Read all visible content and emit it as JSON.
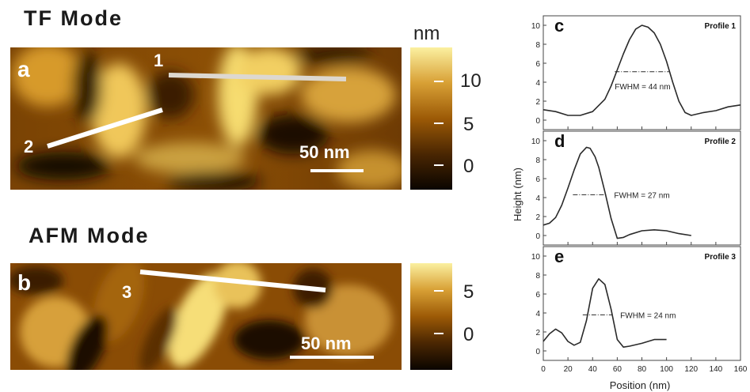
{
  "panel_top": {
    "title": "TF Mode",
    "panel_letter": "a",
    "line_labels": [
      "1",
      "2"
    ],
    "scale_bar": "50 nm"
  },
  "panel_bottom": {
    "title": "AFM Mode",
    "panel_letter": "b",
    "line_labels": [
      "3"
    ],
    "scale_bar": "50 nm"
  },
  "colorbar_top": {
    "unit": "nm",
    "ticks": [
      "10",
      "5",
      "0"
    ]
  },
  "colorbar_bottom": {
    "ticks": [
      "5",
      "0"
    ]
  },
  "colors": {
    "afm_dark": "#1a0f00",
    "afm_mid": "#9c5a06",
    "afm_light": "#f7e27a",
    "profile_line": "#2a2a2a"
  },
  "chart_data": [
    {
      "type": "line",
      "panel_letter": "c",
      "title": "Profile 1",
      "annotation": "FWHM = 44 nm",
      "xlabel": "Position (nm)",
      "ylabel": "Height (nm)",
      "xlim": [
        0,
        160
      ],
      "ylim": [
        -1,
        11
      ],
      "yticks": [
        0,
        2,
        4,
        6,
        8,
        10
      ],
      "x": [
        0,
        10,
        20,
        30,
        40,
        50,
        55,
        60,
        65,
        70,
        75,
        80,
        85,
        90,
        95,
        100,
        105,
        110,
        115,
        120,
        130,
        140,
        150,
        160
      ],
      "y": [
        1.1,
        0.9,
        0.5,
        0.5,
        0.9,
        2.2,
        3.6,
        5.3,
        7.0,
        8.5,
        9.6,
        10.0,
        9.8,
        9.2,
        8.0,
        6.2,
        4.0,
        2.0,
        0.8,
        0.5,
        0.8,
        1.0,
        1.4,
        1.6
      ],
      "fwhm_x": [
        58,
        102
      ],
      "fwhm_y": 5.1
    },
    {
      "type": "line",
      "panel_letter": "d",
      "title": "Profile 2",
      "annotation": "FWHM = 27 nm",
      "ylabel": "Height (nm)",
      "xlim": [
        0,
        160
      ],
      "ylim": [
        -1,
        11
      ],
      "yticks": [
        0,
        2,
        4,
        6,
        8,
        10
      ],
      "x": [
        0,
        5,
        10,
        15,
        20,
        25,
        30,
        35,
        38,
        42,
        45,
        50,
        55,
        60,
        65,
        70,
        80,
        90,
        100,
        110,
        120
      ],
      "y": [
        1.1,
        1.3,
        1.9,
        3.2,
        5.0,
        6.9,
        8.6,
        9.3,
        9.2,
        8.3,
        7.2,
        4.6,
        1.8,
        -0.3,
        -0.2,
        0.1,
        0.5,
        0.6,
        0.5,
        0.2,
        0.0
      ],
      "fwhm_x": [
        24,
        51
      ],
      "fwhm_y": 4.3
    },
    {
      "type": "line",
      "panel_letter": "e",
      "title": "Profile 3",
      "annotation": "FWHM = 24 nm",
      "xlabel": "Position (nm)",
      "ylabel": "Height (nm)",
      "xlim": [
        0,
        160
      ],
      "ylim": [
        -1,
        11
      ],
      "xticks": [
        0,
        20,
        40,
        60,
        80,
        100,
        120,
        140,
        160
      ],
      "yticks": [
        0,
        2,
        4,
        6,
        8,
        10
      ],
      "x": [
        0,
        5,
        10,
        15,
        20,
        25,
        30,
        35,
        40,
        45,
        50,
        55,
        60,
        65,
        70,
        80,
        90,
        100
      ],
      "y": [
        1.0,
        1.8,
        2.3,
        1.9,
        1.0,
        0.6,
        0.9,
        3.2,
        6.6,
        7.6,
        7.0,
        4.4,
        1.2,
        0.4,
        0.5,
        0.8,
        1.2,
        1.2
      ],
      "fwhm_x": [
        32,
        56
      ],
      "fwhm_y": 3.8
    }
  ]
}
